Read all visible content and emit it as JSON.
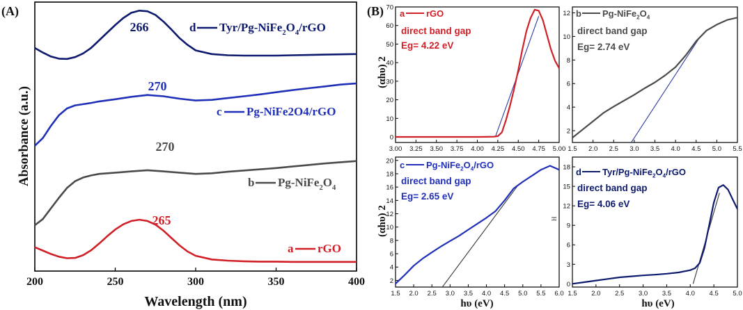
{
  "panel_a": {
    "label": "(A)",
    "xlabel": "Wavelength (nm)",
    "ylabel": "Absorbance (a.u.)",
    "xticks": [
      "200",
      "250",
      "300",
      "350",
      "400"
    ]
  },
  "panel_b": {
    "label": "(B)",
    "ylabel_a": "(αhυ) 2",
    "ylabel_c": "(αhυ) 2",
    "xlabel_c": "hυ (eV)",
    "xlabel_d": "hυ (eV)",
    "stray_mark": "H"
  },
  "colors": {
    "rGO": "#d01f26",
    "Pg-NiFe2O4": "#4a4a4a",
    "Pg-NiFe2O4/rGO": "#1f2fb8",
    "Tyr/Pg-NiFe2O4/rGO": "#0d1a6e",
    "fit_a": "#2a3aa0",
    "fit_b": "#2a3aa0",
    "fit_c": "#333333",
    "fit_d": "#333333"
  },
  "chart_data": [
    {
      "id": "A",
      "type": "line",
      "xlabel": "Wavelength (nm)",
      "ylabel": "Absorbance (a.u.)",
      "xlim": [
        200,
        400
      ],
      "ylim": [
        0,
        8.8
      ],
      "xticks": [
        200,
        250,
        300,
        350,
        400
      ],
      "series": [
        {
          "key": "a",
          "letter": "a",
          "name": "rGO",
          "color_key": "rGO",
          "peak_label": "265",
          "x": [
            200,
            205,
            210,
            215,
            220,
            225,
            230,
            235,
            240,
            245,
            250,
            255,
            260,
            265,
            270,
            275,
            280,
            285,
            290,
            295,
            300,
            310,
            320,
            330,
            340,
            350,
            360,
            370,
            380,
            390,
            400
          ],
          "y": [
            0.78,
            0.67,
            0.56,
            0.47,
            0.42,
            0.43,
            0.52,
            0.68,
            0.9,
            1.14,
            1.36,
            1.53,
            1.64,
            1.68,
            1.64,
            1.52,
            1.32,
            1.08,
            0.84,
            0.64,
            0.5,
            0.38,
            0.34,
            0.32,
            0.31,
            0.31,
            0.3,
            0.3,
            0.3,
            0.3,
            0.3
          ]
        },
        {
          "key": "b",
          "letter": "b",
          "name": "Pg-NiFe",
          "name_sub": "2",
          "name_rest": "O",
          "name_sub2": "4",
          "color_key": "Pg-NiFe2O4",
          "peak_label": "270",
          "x": [
            200,
            205,
            210,
            215,
            220,
            225,
            230,
            235,
            240,
            250,
            260,
            270,
            280,
            290,
            300,
            310,
            320,
            330,
            340,
            350,
            360,
            370,
            380,
            390,
            400
          ],
          "y": [
            1.5,
            1.7,
            2.05,
            2.4,
            2.72,
            2.94,
            3.06,
            3.13,
            3.18,
            3.22,
            3.26,
            3.3,
            3.26,
            3.22,
            3.18,
            3.2,
            3.25,
            3.29,
            3.33,
            3.37,
            3.42,
            3.47,
            3.52,
            3.56,
            3.6
          ]
        },
        {
          "key": "c",
          "letter": "c",
          "name": "Pg-NiFe2O4/rGO",
          "color_key": "Pg-NiFe2O4/rGO",
          "peak_label": "270",
          "x": [
            200,
            205,
            210,
            215,
            220,
            225,
            230,
            235,
            240,
            250,
            260,
            270,
            280,
            290,
            300,
            310,
            320,
            330,
            340,
            350,
            360,
            370,
            380,
            390,
            400
          ],
          "y": [
            4.1,
            4.35,
            4.75,
            5.1,
            5.32,
            5.42,
            5.46,
            5.5,
            5.55,
            5.62,
            5.7,
            5.76,
            5.72,
            5.64,
            5.58,
            5.6,
            5.66,
            5.72,
            5.78,
            5.85,
            5.92,
            5.98,
            6.04,
            6.1,
            6.14
          ]
        },
        {
          "key": "d",
          "letter": "d",
          "name": "Tyr/Pg-NiFe",
          "name_sub": "2",
          "name_rest": "O",
          "name_sub2": "4",
          "name_tail": "/rGO",
          "color_key": "Tyr/Pg-NiFe2O4/rGO",
          "peak_label": "266",
          "x": [
            200,
            205,
            210,
            215,
            220,
            225,
            230,
            235,
            240,
            245,
            250,
            255,
            260,
            265,
            270,
            275,
            280,
            285,
            290,
            295,
            300,
            310,
            320,
            330,
            340,
            350,
            360,
            370,
            380,
            390,
            400
          ],
          "y": [
            7.3,
            7.15,
            7.02,
            6.95,
            6.94,
            7.0,
            7.12,
            7.3,
            7.55,
            7.8,
            8.05,
            8.28,
            8.45,
            8.52,
            8.5,
            8.38,
            8.16,
            7.9,
            7.62,
            7.4,
            7.22,
            7.1,
            7.06,
            7.05,
            7.05,
            7.05,
            7.06,
            7.07,
            7.08,
            7.09,
            7.1
          ]
        }
      ]
    },
    {
      "id": "B-a",
      "type": "line",
      "letter": "a",
      "name": "rGO",
      "color_key": "rGO",
      "fit_color_key": "fit_a",
      "text1": "direct band gap",
      "text2": "Eg= 4.22 eV",
      "ylabel": "(αhυ) 2",
      "xlim": [
        3.0,
        5.0
      ],
      "ylim": [
        -3,
        70
      ],
      "xticks": [
        "3.00",
        "3.25",
        "3.50",
        "3.75",
        "4.00",
        "4.25",
        "4.50",
        "4.75",
        "5.00"
      ],
      "yticks": [
        "0",
        "10",
        "20",
        "30",
        "40",
        "50",
        "60",
        "70"
      ],
      "x": [
        3.0,
        3.5,
        4.0,
        4.1,
        4.2,
        4.25,
        4.3,
        4.35,
        4.4,
        4.45,
        4.5,
        4.55,
        4.6,
        4.65,
        4.7,
        4.75,
        4.8,
        4.85,
        4.9,
        4.95,
        5.0
      ],
      "y": [
        0,
        0,
        0,
        0.05,
        0.15,
        0.4,
        2.5,
        9,
        17,
        26,
        36,
        47,
        57,
        64,
        68.5,
        68,
        63,
        55,
        47,
        41,
        37
      ],
      "fit": {
        "x": [
          4.22,
          4.75
        ],
        "y": [
          0,
          65
        ]
      }
    },
    {
      "id": "B-b",
      "type": "line",
      "letter": "b",
      "name": "Pg-NiFe",
      "name_sub": "2",
      "name_rest": "O",
      "name_sub2": "4",
      "color_key": "Pg-NiFe2O4",
      "fit_color_key": "fit_b",
      "text1": "direct band gap",
      "text2": "Eg= 2.74 eV",
      "xlim": [
        1.5,
        5.5
      ],
      "ylim": [
        1,
        12.5
      ],
      "xticks": [
        "1.5",
        "2.0",
        "2.5",
        "3.0",
        "3.5",
        "4.0",
        "4.5",
        "5.0",
        "5.5"
      ],
      "yticks": [
        "2",
        "4",
        "6",
        "8",
        "10",
        "12"
      ],
      "x": [
        1.5,
        1.75,
        2.0,
        2.25,
        2.5,
        2.75,
        3.0,
        3.25,
        3.5,
        3.75,
        4.0,
        4.25,
        4.5,
        4.75,
        5.0,
        5.25,
        5.5
      ],
      "y": [
        1.4,
        2.1,
        2.8,
        3.5,
        4.05,
        4.55,
        5.05,
        5.6,
        6.1,
        6.7,
        7.4,
        8.4,
        9.6,
        10.5,
        11.0,
        11.4,
        11.6
      ],
      "fit": {
        "x": [
          2.74,
          4.6
        ],
        "y": [
          0,
          10.0
        ]
      }
    },
    {
      "id": "B-c",
      "type": "line",
      "letter": "c",
      "name": "Pg-NiFe",
      "name_sub": "2",
      "name_rest": "O",
      "name_sub2": "4",
      "name_tail": "/rGO",
      "color_key": "Pg-NiFe2O4/rGO",
      "fit_color_key": "fit_c",
      "text1": "direct band gap",
      "text2": "Eg= 2.65 eV",
      "ylabel": "(αhυ) 2",
      "xlabel": "hυ (eV)",
      "xlim": [
        1.5,
        6.0
      ],
      "ylim": [
        1,
        20.5
      ],
      "xticks": [
        "1.5",
        "2.0",
        "2.5",
        "3.0",
        "3.5",
        "4.0",
        "4.5",
        "5.0",
        "5.5",
        "6.0"
      ],
      "yticks": [
        "2",
        "4",
        "6",
        "8",
        "10",
        "12",
        "14",
        "16",
        "18",
        "20"
      ],
      "x": [
        1.5,
        1.75,
        2.0,
        2.25,
        2.5,
        2.75,
        3.0,
        3.25,
        3.5,
        3.75,
        4.0,
        4.25,
        4.5,
        4.75,
        5.0,
        5.25,
        5.5,
        5.75,
        6.0
      ],
      "y": [
        1.5,
        2.8,
        4.2,
        5.3,
        6.2,
        7.1,
        7.9,
        8.7,
        9.6,
        10.5,
        11.4,
        12.4,
        14.0,
        15.8,
        16.8,
        17.7,
        18.6,
        19.2,
        18.6
      ],
      "fit": {
        "x": [
          2.65,
          4.9
        ],
        "y": [
          0,
          16.5
        ]
      }
    },
    {
      "id": "B-d",
      "type": "line",
      "letter": "d",
      "name": "Tyr/Pg-NiFe",
      "name_sub": "2",
      "name_rest": "O",
      "name_sub2": "4",
      "name_tail": "/rGO",
      "color_key": "Tyr/Pg-NiFe2O4/rGO",
      "fit_color_key": "fit_d",
      "text1": "direct band gap",
      "text2": "Eg= 4.06 eV",
      "xlabel": "hυ (eV)",
      "xlim": [
        1.5,
        5.0
      ],
      "ylim": [
        -0.5,
        19.5
      ],
      "xticks": [
        "1.5",
        "2.0",
        "2.5",
        "3.0",
        "3.5",
        "4.0",
        "4.5",
        "5.0"
      ],
      "yticks": [
        "0",
        "3",
        "6",
        "9",
        "12",
        "15",
        "18"
      ],
      "x": [
        1.5,
        1.75,
        2.0,
        2.25,
        2.5,
        2.75,
        3.0,
        3.25,
        3.5,
        3.75,
        4.0,
        4.1,
        4.2,
        4.3,
        4.4,
        4.5,
        4.6,
        4.7,
        4.8,
        4.9,
        5.0
      ],
      "y": [
        0,
        0.25,
        0.5,
        0.75,
        1.0,
        1.15,
        1.3,
        1.4,
        1.55,
        1.75,
        2.1,
        2.4,
        3.2,
        5.5,
        9.0,
        12.5,
        14.8,
        15.2,
        14.5,
        13.0,
        11.5
      ],
      "fit": {
        "x": [
          4.06,
          4.62
        ],
        "y": [
          0,
          14.0
        ]
      }
    }
  ]
}
